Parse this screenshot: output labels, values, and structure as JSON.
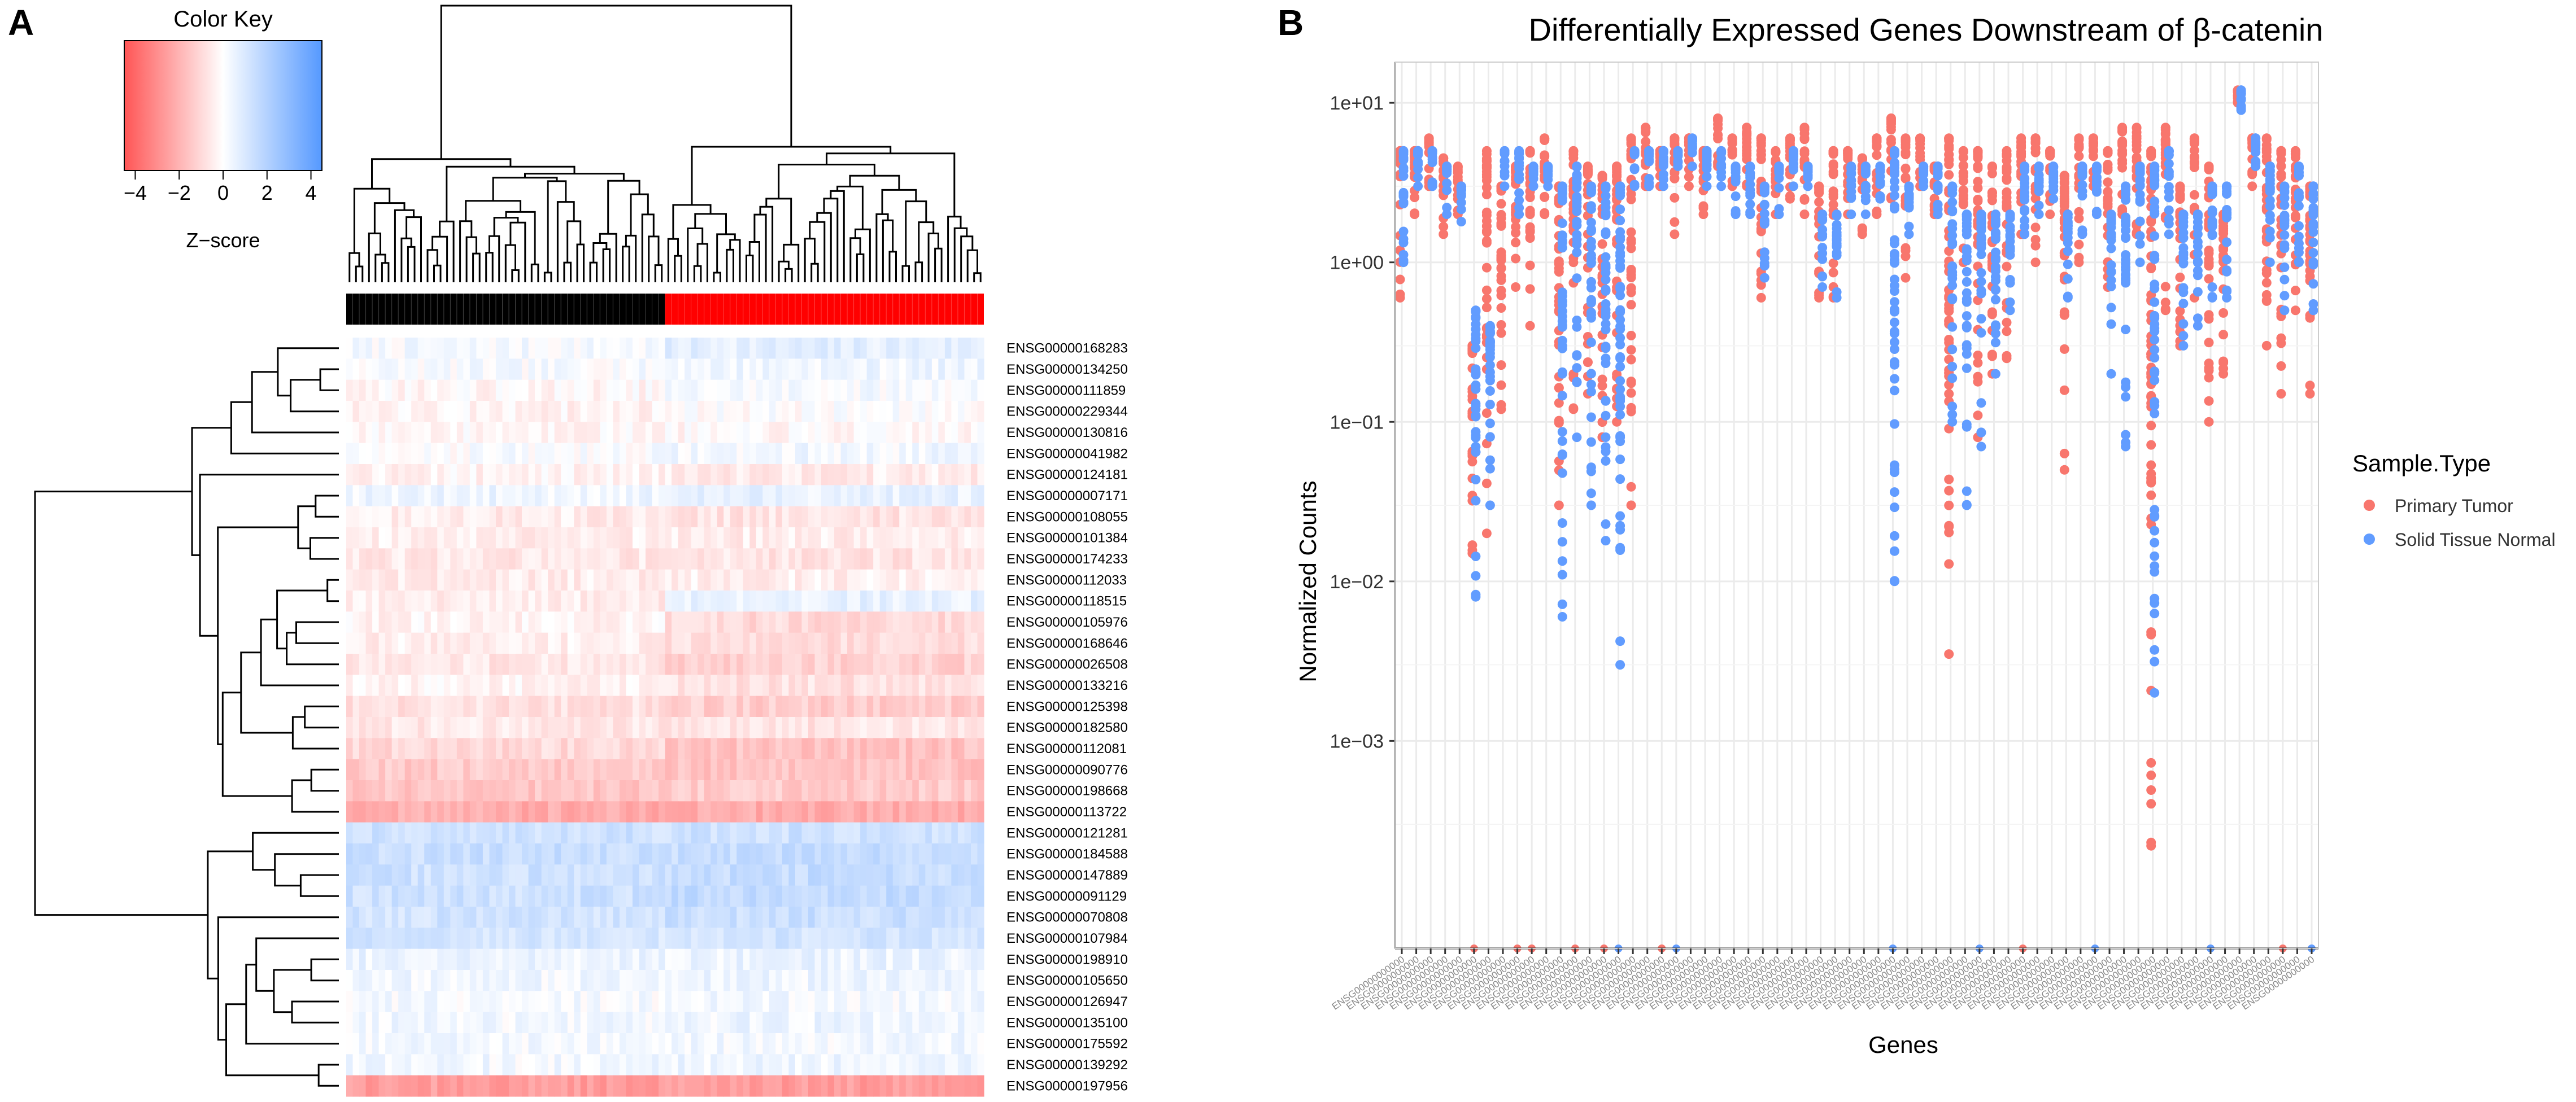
{
  "panel_labels": {
    "a": "A",
    "b": "B"
  },
  "colors": {
    "red": "#f8766d",
    "blue": "#619cff",
    "black": "#000000",
    "bright_red": "#ff0000",
    "heat_red": "#ff5555",
    "heat_blue": "#5599ff",
    "grid": "#ebebeb",
    "axis": "#333333"
  },
  "chart_data": [
    {
      "type": "heatmap",
      "panel": "A",
      "color_key": {
        "title": "Color Key",
        "xlabel": "Z−score",
        "ticks": [
          "−4",
          "−2",
          "0",
          "2",
          "4"
        ],
        "range": [
          -4.5,
          4.5
        ]
      },
      "n_columns": 98,
      "n_black_samples": 49,
      "n_red_samples": 49,
      "sample_groups": [
        "black",
        "red"
      ],
      "row_labels": [
        "ENSG00000168283",
        "ENSG00000134250",
        "ENSG00000111859",
        "ENSG00000229344",
        "ENSG00000130816",
        "ENSG00000041982",
        "ENSG00000124181",
        "ENSG00000007171",
        "ENSG00000108055",
        "ENSG00000101384",
        "ENSG00000174233",
        "ENSG00000112033",
        "ENSG00000118515",
        "ENSG00000105976",
        "ENSG00000168646",
        "ENSG00000026508",
        "ENSG00000133216",
        "ENSG00000125398",
        "ENSG00000182580",
        "ENSG00000112081",
        "ENSG00000090776",
        "ENSG00000198668",
        "ENSG00000113722",
        "ENSG00000121281",
        "ENSG00000184588",
        "ENSG00000147889",
        "ENSG00000091129",
        "ENSG00000070808",
        "ENSG00000107984",
        "ENSG00000198910",
        "ENSG00000105650",
        "ENSG00000126947",
        "ENSG00000135100",
        "ENSG00000175592",
        "ENSG00000139292",
        "ENSG00000197956"
      ],
      "row_z_group1": [
        0.2,
        0.15,
        -0.2,
        -0.3,
        -0.2,
        0.1,
        -0.3,
        0.4,
        -0.5,
        -0.4,
        -0.6,
        -0.5,
        -0.5,
        -0.3,
        -0.4,
        -0.6,
        -0.3,
        -0.8,
        -0.6,
        -1.0,
        -1.4,
        -1.5,
        -2.2,
        1.3,
        1.4,
        1.3,
        1.3,
        1.2,
        1.1,
        0.5,
        0.3,
        0.2,
        0.3,
        0.3,
        0.3,
        -2.6
      ],
      "row_z_group2": [
        0.7,
        0.4,
        0.2,
        0.0,
        -0.2,
        0.3,
        -0.5,
        0.6,
        -0.7,
        -0.5,
        -0.7,
        -0.4,
        0.6,
        -1.0,
        -0.9,
        -1.2,
        -0.8,
        -1.3,
        -0.7,
        -1.6,
        -1.6,
        -1.4,
        -2.2,
        1.3,
        1.5,
        1.5,
        1.6,
        1.4,
        1.1,
        0.5,
        0.4,
        0.3,
        0.4,
        0.3,
        0.4,
        -2.6
      ]
    },
    {
      "type": "scatter",
      "panel": "B",
      "title": "Differentially Expressed Genes Downstream of β-catenin",
      "xlabel": "Genes",
      "ylabel": "Normalized Counts",
      "y_scale": "log10",
      "ylim": [
        5e-05,
        18
      ],
      "y_ticks": [
        0.001,
        0.01,
        0.1,
        1,
        10
      ],
      "y_tick_labels": [
        "1e−03",
        "1e−02",
        "1e−01",
        "1e+00",
        "1e+01"
      ],
      "n_genes": 64,
      "x_tick_label_template": "ENSG00000000000",
      "legend": {
        "title": "Sample.Type",
        "position": "right",
        "entries": [
          {
            "name": "Primary Tumor",
            "color": "#f8766d"
          },
          {
            "name": "Solid Tissue Normal",
            "color": "#619cff"
          }
        ]
      },
      "series": [
        {
          "name": "Primary Tumor",
          "ranges": [
            [
              0.6,
              5
            ],
            [
              2,
              5
            ],
            [
              3,
              6
            ],
            [
              1.5,
              4.5
            ],
            [
              2,
              4
            ],
            [
              0.015,
              0.3
            ],
            [
              0.02,
              5
            ],
            [
              0.12,
              3
            ],
            [
              0.7,
              4
            ],
            [
              0.4,
              5
            ],
            [
              2,
              6
            ],
            [
              0.03,
              3
            ],
            [
              0.12,
              5
            ],
            [
              0.15,
              4
            ],
            [
              0.08,
              3.5
            ],
            [
              0.1,
              4
            ],
            [
              0.03,
              6
            ],
            [
              3,
              7
            ],
            [
              3,
              5
            ],
            [
              1.5,
              6
            ],
            [
              3,
              6
            ],
            [
              2,
              5
            ],
            [
              4,
              8
            ],
            [
              3,
              6
            ],
            [
              3,
              7
            ],
            [
              0.6,
              6
            ],
            [
              2,
              5
            ],
            [
              2.5,
              6
            ],
            [
              2,
              7
            ],
            [
              0.6,
              3
            ],
            [
              0.6,
              5
            ],
            [
              2,
              5
            ],
            [
              1.5,
              4.5
            ],
            [
              2,
              6
            ],
            [
              2.5,
              8
            ],
            [
              0.8,
              6
            ],
            [
              3,
              6
            ],
            [
              2,
              4
            ],
            [
              0.0035,
              6
            ],
            [
              1,
              5
            ],
            [
              0.08,
              5
            ],
            [
              0.2,
              4
            ],
            [
              0.25,
              5
            ],
            [
              1.5,
              6
            ],
            [
              1,
              6
            ],
            [
              2,
              5
            ],
            [
              0.05,
              3.5
            ],
            [
              1,
              6
            ],
            [
              3,
              6
            ],
            [
              0.7,
              5
            ],
            [
              2,
              7
            ],
            [
              1.5,
              7
            ],
            [
              0.00022,
              5
            ],
            [
              0.5,
              7
            ],
            [
              0.3,
              3
            ],
            [
              0.6,
              6
            ],
            [
              0.1,
              4
            ],
            [
              0.2,
              2
            ],
            [
              10,
              12
            ],
            [
              3,
              6
            ],
            [
              0.3,
              6
            ],
            [
              0.15,
              5
            ],
            [
              0.5,
              5
            ],
            [
              0.15,
              3
            ]
          ],
          "extra_points": [
            [
              8,
              5e-05
            ],
            [
              5,
              5e-05
            ],
            [
              9,
              5e-05
            ],
            [
              12,
              5e-05
            ],
            [
              14,
              5e-05
            ],
            [
              18,
              5e-05
            ],
            [
              43,
              5e-05
            ],
            [
              61,
              5e-05
            ]
          ]
        },
        {
          "name": "Solid Tissue Normal",
          "ranges": [
            [
              1,
              5
            ],
            [
              3,
              5
            ],
            [
              3,
              5
            ],
            [
              2,
              4
            ],
            [
              1.8,
              3
            ],
            [
              0.008,
              0.5
            ],
            [
              0.03,
              0.4
            ],
            [
              3,
              5
            ],
            [
              2,
              5
            ],
            [
              3,
              4
            ],
            [
              3,
              4
            ],
            [
              0.006,
              3
            ],
            [
              0.08,
              4
            ],
            [
              0.03,
              3
            ],
            [
              0.018,
              3
            ],
            [
              0.003,
              3
            ],
            [
              3,
              5
            ],
            [
              3,
              5
            ],
            [
              3,
              5
            ],
            [
              4,
              5
            ],
            [
              4,
              6
            ],
            [
              3,
              5
            ],
            [
              3,
              5
            ],
            [
              2,
              4
            ],
            [
              2,
              4
            ],
            [
              0.8,
              3
            ],
            [
              2,
              4
            ],
            [
              3,
              5
            ],
            [
              3,
              4
            ],
            [
              0.7,
              2
            ],
            [
              0.6,
              2
            ],
            [
              2,
              4
            ],
            [
              2,
              4
            ],
            [
              2.5,
              4
            ],
            [
              0.01,
              5
            ],
            [
              1.5,
              3
            ],
            [
              3,
              4
            ],
            [
              2,
              4
            ],
            [
              0.1,
              3
            ],
            [
              0.03,
              2
            ],
            [
              0.07,
              2
            ],
            [
              0.2,
              2
            ],
            [
              0.5,
              2
            ],
            [
              1.5,
              4
            ],
            [
              2,
              4
            ],
            [
              2.5,
              4
            ],
            [
              0.6,
              2
            ],
            [
              1.5,
              4
            ],
            [
              2,
              4
            ],
            [
              0.2,
              2
            ],
            [
              0.07,
              3
            ],
            [
              1,
              4
            ],
            [
              0.002,
              4
            ],
            [
              1.5,
              5
            ],
            [
              0.3,
              2
            ],
            [
              0.4,
              2
            ],
            [
              0.6,
              3
            ],
            [
              0.6,
              3
            ],
            [
              9,
              12
            ],
            [
              4,
              6
            ],
            [
              1,
              4
            ],
            [
              0.5,
              3
            ],
            [
              1,
              4
            ],
            [
              0.5,
              3
            ]
          ],
          "extra_points": [
            [
              15,
              5e-05
            ],
            [
              19,
              5e-05
            ],
            [
              34,
              5e-05
            ],
            [
              40,
              5e-05
            ],
            [
              48,
              5e-05
            ],
            [
              56,
              5e-05
            ],
            [
              63,
              5e-05
            ]
          ]
        }
      ]
    }
  ]
}
